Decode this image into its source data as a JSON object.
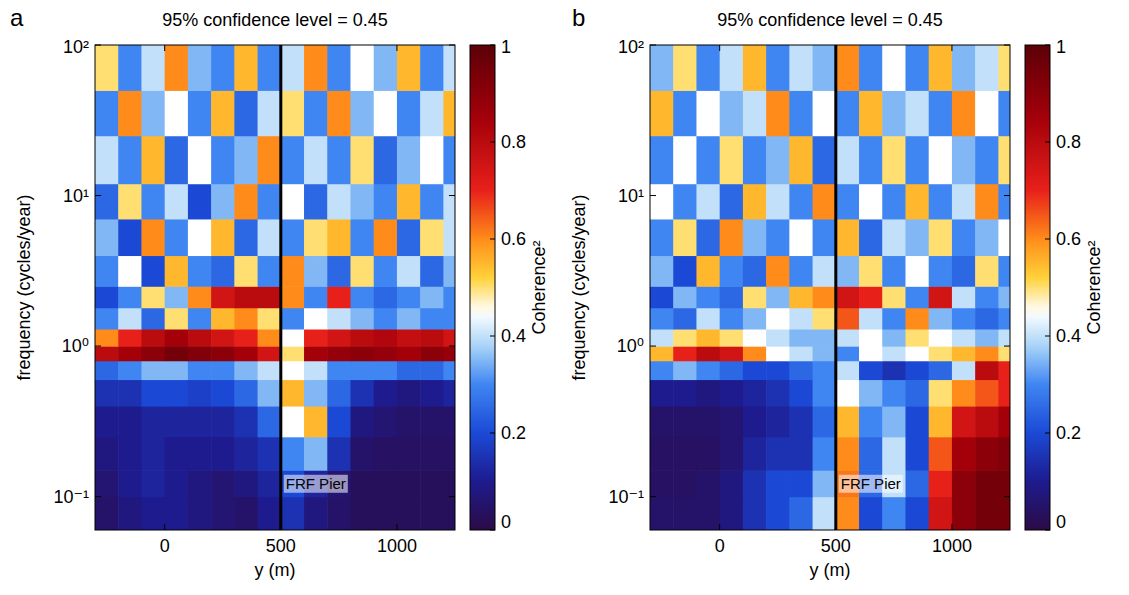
{
  "chart_data": [
    {
      "type": "heatmap",
      "label": "a",
      "title": "95% confidence level = 0.45",
      "x_label": "y (m)",
      "y_label": "frequency (cycles/year)",
      "log": "y",
      "xlim": [
        -300,
        1250
      ],
      "ylim": [
        0.06,
        100
      ],
      "xticks": [
        0,
        500,
        1000
      ],
      "yticks": [
        {
          "value": 0.1,
          "label": "10⁻¹"
        },
        {
          "value": 1,
          "label": "10⁰"
        },
        {
          "value": 10,
          "label": "10¹"
        },
        {
          "value": 100,
          "label": "10²"
        }
      ],
      "x_edges": [
        -300,
        -200,
        -100,
        0,
        100,
        200,
        300,
        400,
        500,
        600,
        700,
        800,
        900,
        1000,
        1100,
        1200,
        1250
      ],
      "y_edges": [
        0.06,
        0.1,
        0.15,
        0.25,
        0.4,
        0.6,
        0.8,
        1.0,
        1.3,
        1.8,
        2.5,
        4,
        7,
        12,
        25,
        50,
        100
      ],
      "cells": [
        [
          0.05,
          0.08,
          0.1,
          0.1,
          0.08,
          0.06,
          0.05,
          0.1,
          0.15,
          0.08,
          0.05,
          0.03,
          0.03,
          0.03,
          0.03,
          0.03
        ],
        [
          0.06,
          0.1,
          0.12,
          0.1,
          0.08,
          0.06,
          0.08,
          0.12,
          0.2,
          0.12,
          0.06,
          0.03,
          0.03,
          0.03,
          0.03,
          0.03
        ],
        [
          0.08,
          0.1,
          0.12,
          0.1,
          0.1,
          0.1,
          0.12,
          0.15,
          0.3,
          0.35,
          0.15,
          0.05,
          0.04,
          0.04,
          0.04,
          0.04
        ],
        [
          0.1,
          0.1,
          0.12,
          0.12,
          0.12,
          0.12,
          0.15,
          0.25,
          0.45,
          0.55,
          0.2,
          0.08,
          0.06,
          0.05,
          0.05,
          0.05
        ],
        [
          0.15,
          0.15,
          0.2,
          0.2,
          0.18,
          0.2,
          0.25,
          0.35,
          0.55,
          0.35,
          0.25,
          0.15,
          0.1,
          0.08,
          0.1,
          0.12
        ],
        [
          0.25,
          0.3,
          0.35,
          0.35,
          0.3,
          0.3,
          0.35,
          0.4,
          0.45,
          0.4,
          0.3,
          0.3,
          0.3,
          0.25,
          0.25,
          0.3
        ],
        [
          0.8,
          0.85,
          0.9,
          0.95,
          0.92,
          0.9,
          0.85,
          0.75,
          0.5,
          0.85,
          0.88,
          0.9,
          0.88,
          0.85,
          0.9,
          0.88
        ],
        [
          0.6,
          0.7,
          0.8,
          0.85,
          0.8,
          0.75,
          0.7,
          0.6,
          0.45,
          0.7,
          0.75,
          0.8,
          0.82,
          0.78,
          0.8,
          0.75
        ],
        [
          0.3,
          0.4,
          0.25,
          0.5,
          0.3,
          0.55,
          0.6,
          0.5,
          0.3,
          0.45,
          0.4,
          0.35,
          0.3,
          0.35,
          0.3,
          0.3
        ],
        [
          0.2,
          0.3,
          0.5,
          0.35,
          0.6,
          0.75,
          0.8,
          0.8,
          0.6,
          0.3,
          0.7,
          0.3,
          0.25,
          0.3,
          0.35,
          0.3
        ],
        [
          0.3,
          0.45,
          0.2,
          0.55,
          0.3,
          0.25,
          0.5,
          0.3,
          0.6,
          0.35,
          0.25,
          0.5,
          0.3,
          0.4,
          0.25,
          0.35
        ],
        [
          0.35,
          0.2,
          0.6,
          0.3,
          0.45,
          0.55,
          0.25,
          0.4,
          0.3,
          0.5,
          0.55,
          0.3,
          0.6,
          0.25,
          0.5,
          0.4
        ],
        [
          0.25,
          0.5,
          0.3,
          0.4,
          0.2,
          0.35,
          0.6,
          0.3,
          0.45,
          0.25,
          0.4,
          0.35,
          0.3,
          0.55,
          0.3,
          0.4
        ],
        [
          0.4,
          0.3,
          0.55,
          0.25,
          0.45,
          0.3,
          0.35,
          0.6,
          0.3,
          0.4,
          0.3,
          0.5,
          0.25,
          0.35,
          0.45,
          0.3
        ],
        [
          0.3,
          0.6,
          0.35,
          0.45,
          0.3,
          0.55,
          0.25,
          0.4,
          0.5,
          0.3,
          0.6,
          0.35,
          0.45,
          0.3,
          0.4,
          0.55
        ],
        [
          0.5,
          0.3,
          0.4,
          0.6,
          0.35,
          0.3,
          0.55,
          0.3,
          0.4,
          0.6,
          0.3,
          0.45,
          0.35,
          0.55,
          0.3,
          0.4
        ]
      ],
      "colorbar": {
        "label": "Coherence²",
        "range": [
          0,
          1
        ],
        "ticks": [
          0,
          0.2,
          0.4,
          0.6,
          0.8,
          1
        ]
      },
      "annotations": [
        {
          "text": "FRF Pier",
          "x": 500
        }
      ]
    },
    {
      "type": "heatmap",
      "label": "b",
      "title": "95% confidence level = 0.45",
      "x_label": "y (m)",
      "y_label": "frequency (cycles/year)",
      "log": "y",
      "xlim": [
        -300,
        1250
      ],
      "ylim": [
        0.06,
        100
      ],
      "xticks": [
        0,
        500,
        1000
      ],
      "yticks": [
        {
          "value": 0.1,
          "label": "10⁻¹"
        },
        {
          "value": 1,
          "label": "10⁰"
        },
        {
          "value": 10,
          "label": "10¹"
        },
        {
          "value": 100,
          "label": "10²"
        }
      ],
      "x_edges": [
        -300,
        -200,
        -100,
        0,
        100,
        200,
        300,
        400,
        500,
        600,
        700,
        800,
        900,
        1000,
        1100,
        1200,
        1250
      ],
      "y_edges": [
        0.06,
        0.1,
        0.15,
        0.25,
        0.4,
        0.6,
        0.8,
        1.0,
        1.3,
        1.8,
        2.5,
        4,
        7,
        12,
        25,
        50,
        100
      ],
      "cells": [
        [
          0.05,
          0.05,
          0.05,
          0.08,
          0.15,
          0.2,
          0.25,
          0.4,
          0.6,
          0.2,
          0.3,
          0.2,
          0.75,
          0.9,
          0.95,
          0.95
        ],
        [
          0.04,
          0.04,
          0.05,
          0.08,
          0.15,
          0.2,
          0.2,
          0.35,
          0.62,
          0.25,
          0.4,
          0.25,
          0.7,
          0.9,
          0.95,
          0.95
        ],
        [
          0.04,
          0.04,
          0.04,
          0.06,
          0.12,
          0.15,
          0.15,
          0.3,
          0.6,
          0.25,
          0.4,
          0.2,
          0.65,
          0.85,
          0.9,
          0.92
        ],
        [
          0.05,
          0.05,
          0.05,
          0.06,
          0.1,
          0.12,
          0.15,
          0.25,
          0.55,
          0.3,
          0.35,
          0.2,
          0.55,
          0.75,
          0.8,
          0.85
        ],
        [
          0.1,
          0.1,
          0.08,
          0.1,
          0.12,
          0.15,
          0.2,
          0.3,
          0.45,
          0.35,
          0.3,
          0.25,
          0.5,
          0.6,
          0.65,
          0.7
        ],
        [
          0.3,
          0.35,
          0.3,
          0.25,
          0.2,
          0.2,
          0.25,
          0.3,
          0.4,
          0.2,
          0.15,
          0.2,
          0.25,
          0.4,
          0.8,
          0.7
        ],
        [
          0.55,
          0.7,
          0.8,
          0.75,
          0.6,
          0.45,
          0.4,
          0.35,
          0.3,
          0.45,
          0.4,
          0.45,
          0.5,
          0.55,
          0.6,
          0.5
        ],
        [
          0.4,
          0.5,
          0.55,
          0.5,
          0.45,
          0.4,
          0.35,
          0.35,
          0.4,
          0.45,
          0.35,
          0.5,
          0.45,
          0.4,
          0.35,
          0.4
        ],
        [
          0.3,
          0.25,
          0.4,
          0.3,
          0.35,
          0.45,
          0.4,
          0.5,
          0.65,
          0.4,
          0.3,
          0.6,
          0.35,
          0.3,
          0.25,
          0.3
        ],
        [
          0.2,
          0.35,
          0.3,
          0.25,
          0.5,
          0.35,
          0.55,
          0.6,
          0.75,
          0.7,
          0.5,
          0.3,
          0.75,
          0.4,
          0.3,
          0.35
        ],
        [
          0.35,
          0.2,
          0.55,
          0.3,
          0.25,
          0.6,
          0.3,
          0.4,
          0.35,
          0.5,
          0.3,
          0.45,
          0.3,
          0.25,
          0.5,
          0.3
        ],
        [
          0.3,
          0.5,
          0.25,
          0.6,
          0.35,
          0.3,
          0.45,
          0.3,
          0.55,
          0.25,
          0.4,
          0.35,
          0.5,
          0.3,
          0.35,
          0.45
        ],
        [
          0.45,
          0.3,
          0.4,
          0.25,
          0.55,
          0.4,
          0.3,
          0.6,
          0.3,
          0.45,
          0.3,
          0.55,
          0.3,
          0.4,
          0.6,
          0.3
        ],
        [
          0.3,
          0.45,
          0.3,
          0.5,
          0.3,
          0.35,
          0.55,
          0.25,
          0.4,
          0.3,
          0.5,
          0.3,
          0.45,
          0.35,
          0.3,
          0.5
        ],
        [
          0.55,
          0.3,
          0.45,
          0.35,
          0.4,
          0.6,
          0.3,
          0.45,
          0.3,
          0.55,
          0.35,
          0.4,
          0.3,
          0.6,
          0.45,
          0.3
        ],
        [
          0.35,
          0.5,
          0.3,
          0.4,
          0.55,
          0.3,
          0.4,
          0.35,
          0.6,
          0.3,
          0.45,
          0.3,
          0.55,
          0.35,
          0.4,
          0.5
        ]
      ],
      "colorbar": {
        "label": "Coherence²",
        "range": [
          0,
          1
        ],
        "ticks": [
          0,
          0.2,
          0.4,
          0.6,
          0.8,
          1
        ]
      },
      "annotations": [
        {
          "text": "FRF Pier",
          "x": 500
        }
      ]
    }
  ]
}
